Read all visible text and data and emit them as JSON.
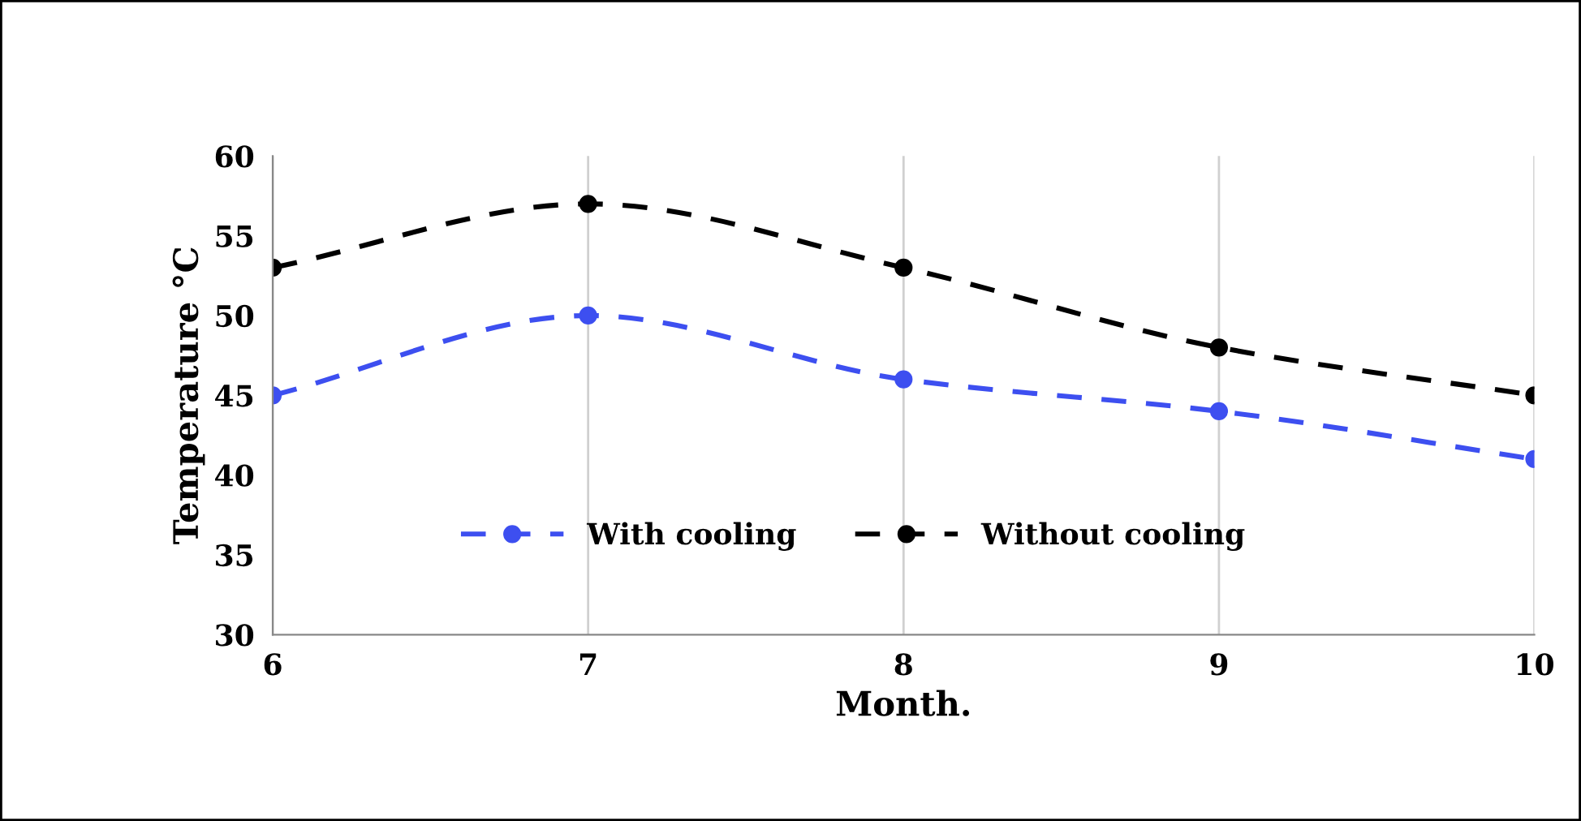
{
  "chart_data": {
    "type": "line",
    "xlabel": "Month.",
    "ylabel": "Temperature °C",
    "x": [
      6,
      7,
      8,
      9,
      10
    ],
    "series": [
      {
        "name": "With cooling",
        "color": "#3d4ff0",
        "values": [
          45,
          50,
          46,
          44,
          41
        ]
      },
      {
        "name": "Without cooling",
        "color": "#000000",
        "values": [
          53,
          57,
          53,
          48,
          45
        ]
      }
    ],
    "xlim": [
      6,
      10
    ],
    "xticks": [
      6,
      7,
      8,
      9,
      10
    ],
    "ylim": [
      30,
      60
    ],
    "yticks": [
      30,
      35,
      40,
      45,
      50,
      55,
      60
    ],
    "grid": "x",
    "legend": "bottom",
    "marker": "circle",
    "line_style": "dashed"
  }
}
